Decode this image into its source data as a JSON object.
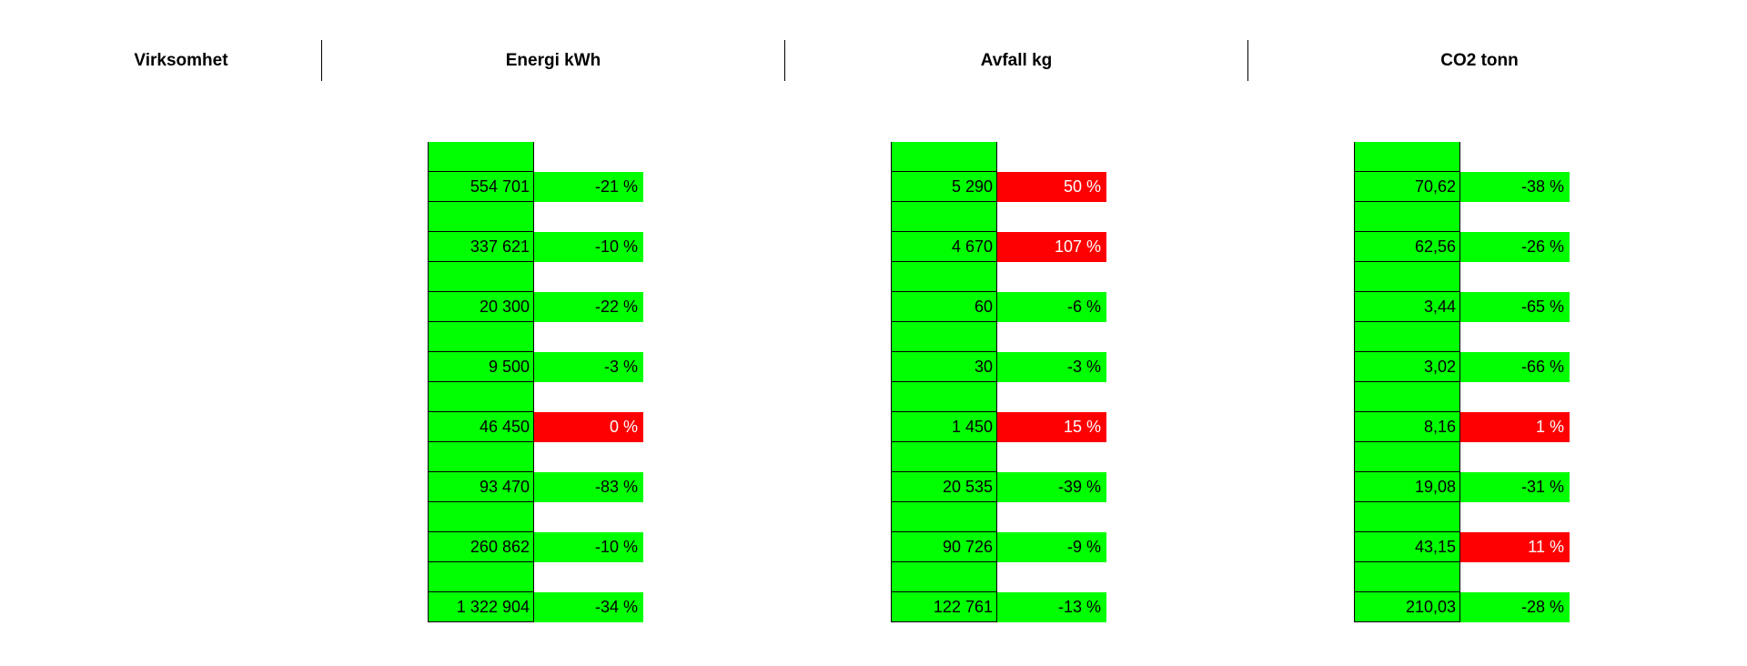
{
  "header": {
    "col1": "Virksomhet",
    "col2": "Energi kWh",
    "col3": "Avfall kg",
    "col4": "CO2 tonn"
  },
  "energi": [
    {
      "value": "554 701",
      "change": "-21 %",
      "status": "green"
    },
    {
      "value": "337 621",
      "change": "-10 %",
      "status": "green"
    },
    {
      "value": "20 300",
      "change": "-22 %",
      "status": "green"
    },
    {
      "value": "9 500",
      "change": "-3 %",
      "status": "green"
    },
    {
      "value": "46 450",
      "change": "0 %",
      "status": "red"
    },
    {
      "value": "93 470",
      "change": "-83 %",
      "status": "green"
    },
    {
      "value": "260 862",
      "change": "-10 %",
      "status": "green"
    },
    {
      "value": "1 322 904",
      "change": "-34 %",
      "status": "green"
    }
  ],
  "avfall": [
    {
      "value": "5 290",
      "change": "50 %",
      "status": "red"
    },
    {
      "value": "4 670",
      "change": "107 %",
      "status": "red"
    },
    {
      "value": "60",
      "change": "-6 %",
      "status": "green"
    },
    {
      "value": "30",
      "change": "-3 %",
      "status": "green"
    },
    {
      "value": "1 450",
      "change": "15 %",
      "status": "red"
    },
    {
      "value": "20 535",
      "change": "-39 %",
      "status": "green"
    },
    {
      "value": "90 726",
      "change": "-9 %",
      "status": "green"
    },
    {
      "value": "122 761",
      "change": "-13 %",
      "status": "green"
    }
  ],
  "co2": [
    {
      "value": "70,62",
      "change": "-38 %",
      "status": "green"
    },
    {
      "value": "62,56",
      "change": "-26 %",
      "status": "green"
    },
    {
      "value": "3,44",
      "change": "-65 %",
      "status": "green"
    },
    {
      "value": "3,02",
      "change": "-66 %",
      "status": "green"
    },
    {
      "value": "8,16",
      "change": "1 %",
      "status": "red"
    },
    {
      "value": "19,08",
      "change": "-31 %",
      "status": "green"
    },
    {
      "value": "43,15",
      "change": "11 %",
      "status": "red"
    },
    {
      "value": "210,03",
      "change": "-28 %",
      "status": "green"
    }
  ],
  "colors": {
    "good": "#00ff00",
    "bad": "#ff0000"
  }
}
